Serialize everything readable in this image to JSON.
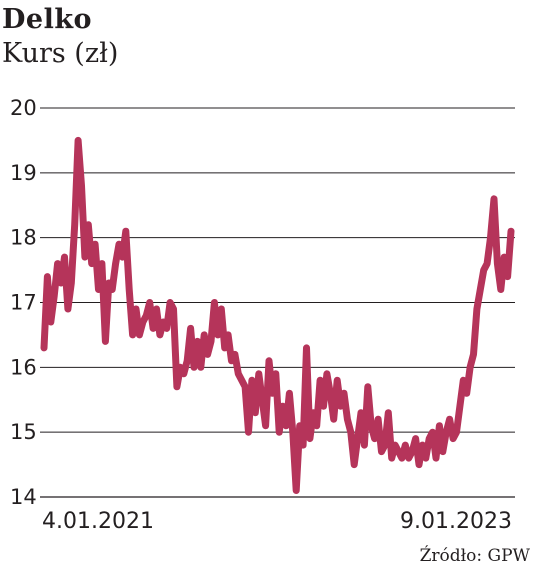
{
  "chart_data": {
    "type": "line",
    "title": "Delko",
    "subtitle": "Kurs (zł)",
    "xlabel": "",
    "ylabel": "Kurs (zł)",
    "ylim": [
      14,
      20
    ],
    "y_ticks": [
      "14",
      "15",
      "16",
      "17",
      "18",
      "19",
      "20"
    ],
    "x_tick_labels": [
      "4.01.2021",
      "9.01.2023"
    ],
    "grid": true,
    "line_color": "#b5345a",
    "series": [
      {
        "values": [
          16.3,
          17.4,
          16.7,
          17.1,
          17.6,
          17.3,
          17.7,
          16.9,
          17.3,
          18.2,
          19.5,
          18.8,
          17.7,
          18.2,
          17.6,
          17.9,
          17.2,
          17.6,
          16.4,
          17.3,
          17.2,
          17.6,
          17.9,
          17.7,
          18.1,
          17.2,
          16.5,
          16.9,
          16.5,
          16.7,
          16.8,
          17.0,
          16.6,
          16.9,
          16.5,
          16.7,
          16.6,
          17.0,
          16.9,
          15.7,
          16.0,
          15.9,
          16.1,
          16.6,
          16.0,
          16.4,
          16.0,
          16.5,
          16.2,
          16.4,
          17.0,
          16.5,
          16.9,
          16.3,
          16.5,
          16.1,
          16.2,
          15.9,
          15.8,
          15.7,
          15.0,
          15.8,
          15.3,
          15.9,
          15.5,
          15.1,
          16.1,
          15.6,
          15.9,
          15.0,
          15.4,
          15.1,
          15.6,
          15.0,
          14.1,
          15.1,
          14.8,
          16.3,
          14.9,
          15.3,
          15.1,
          15.8,
          15.4,
          15.9,
          15.6,
          15.2,
          15.8,
          15.4,
          15.6,
          15.2,
          15.0,
          14.5,
          14.9,
          15.3,
          14.8,
          15.7,
          15.1,
          14.9,
          15.2,
          14.7,
          14.8,
          15.3,
          14.6,
          14.8,
          14.7,
          14.6,
          14.8,
          14.6,
          14.7,
          14.9,
          14.5,
          14.8,
          14.6,
          14.9,
          15.0,
          14.6,
          15.1,
          14.7,
          15.0,
          15.2,
          14.9,
          15.0,
          15.4,
          15.8,
          15.6,
          16.0,
          16.2,
          16.9,
          17.2,
          17.5,
          17.6,
          18.0,
          18.6,
          17.6,
          17.2,
          17.7,
          17.4,
          18.1
        ]
      }
    ]
  },
  "source_text": "Źródło: GPW"
}
